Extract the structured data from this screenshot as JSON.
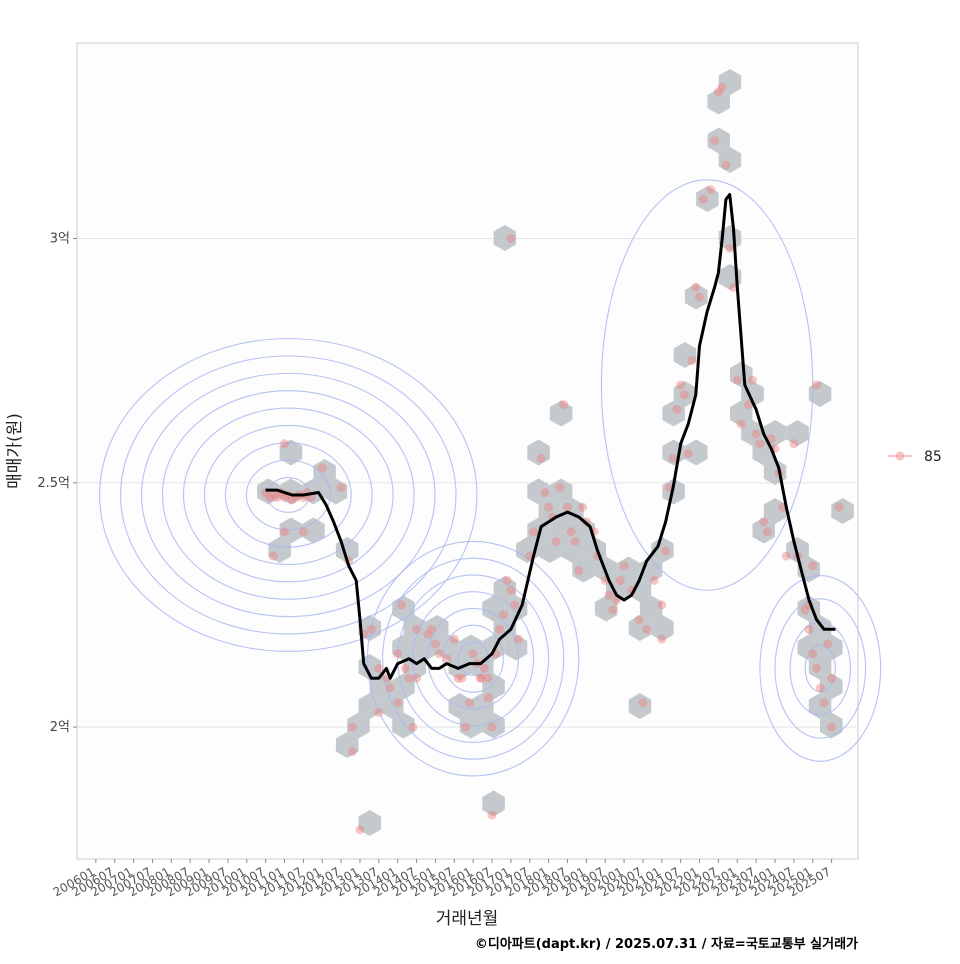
{
  "chart_data": {
    "type": "scatter",
    "xlabel": "거래년월",
    "ylabel": "매매가(원)",
    "caption": "©디아파트(dapt.kr) / 2025.07.31 / 자료=국토교통부 실거래가",
    "y_ticks": [
      {
        "value": 20000,
        "label": "2억"
      },
      {
        "value": 25000,
        "label": "2.5억"
      },
      {
        "value": 30000,
        "label": "3억"
      }
    ],
    "ylim": [
      17300,
      34000
    ],
    "xlim": [
      2005.5,
      2026.2
    ],
    "x_tick_labels": [
      "200601",
      "200607",
      "200701",
      "200707",
      "200801",
      "200807",
      "200901",
      "200907",
      "201001",
      "201007",
      "201101",
      "201107",
      "201201",
      "201207",
      "201301",
      "201307",
      "201401",
      "201407",
      "201501",
      "201507",
      "201601",
      "201607",
      "201701",
      "201707",
      "201801",
      "201807",
      "201901",
      "201907",
      "202001",
      "202007",
      "202101",
      "202107",
      "202201",
      "202207",
      "202301",
      "202307",
      "202401",
      "202407",
      "202501",
      "202507"
    ],
    "legend": [
      {
        "label": "85",
        "color": "#f4a0a0"
      }
    ],
    "grid": true,
    "colors": {
      "points": "#f08080",
      "hex": "#bcc3c8",
      "contour": "#aab8f0",
      "trend": "#000000",
      "panel_border": "#cccccc"
    },
    "series": [
      {
        "name": "85",
        "points": [
          [
            2010.5,
            24800
          ],
          [
            2010.6,
            24700
          ],
          [
            2010.7,
            24750
          ],
          [
            2010.8,
            24700
          ],
          [
            2010.9,
            24800
          ],
          [
            2011.0,
            24700
          ],
          [
            2011.1,
            24750
          ],
          [
            2011.2,
            24650
          ],
          [
            2011.3,
            24700
          ],
          [
            2011.4,
            24750
          ],
          [
            2011.5,
            24700
          ],
          [
            2011.6,
            24800
          ],
          [
            2011.7,
            24700
          ],
          [
            2011.0,
            25800
          ],
          [
            2011.0,
            24000
          ],
          [
            2011.5,
            24000
          ],
          [
            2010.7,
            23500
          ],
          [
            2012.0,
            25300
          ],
          [
            2012.5,
            24900
          ],
          [
            2012.7,
            23400
          ],
          [
            2013.1,
            21900
          ],
          [
            2013.3,
            22000
          ],
          [
            2013.5,
            20300
          ],
          [
            2012.8,
            20000
          ],
          [
            2012.8,
            19500
          ],
          [
            2013.0,
            17900
          ],
          [
            2013.5,
            21200
          ],
          [
            2013.7,
            21000
          ],
          [
            2013.8,
            20800
          ],
          [
            2014.0,
            21500
          ],
          [
            2014.2,
            21200
          ],
          [
            2014.3,
            21000
          ],
          [
            2014.5,
            21000
          ],
          [
            2014.5,
            22000
          ],
          [
            2014.1,
            22500
          ],
          [
            2014.0,
            20500
          ],
          [
            2014.4,
            20000
          ],
          [
            2014.8,
            21900
          ],
          [
            2014.9,
            22000
          ],
          [
            2015.0,
            21700
          ],
          [
            2015.1,
            21500
          ],
          [
            2015.3,
            21400
          ],
          [
            2015.5,
            21800
          ],
          [
            2015.6,
            21000
          ],
          [
            2015.7,
            21000
          ],
          [
            2015.8,
            20000
          ],
          [
            2015.9,
            20500
          ],
          [
            2016.0,
            21500
          ],
          [
            2016.1,
            21300
          ],
          [
            2016.2,
            21000
          ],
          [
            2016.3,
            21200
          ],
          [
            2016.4,
            21000
          ],
          [
            2016.5,
            20000
          ],
          [
            2016.6,
            21500
          ],
          [
            2016.7,
            22000
          ],
          [
            2016.8,
            22300
          ],
          [
            2016.9,
            23000
          ],
          [
            2017.0,
            22800
          ],
          [
            2017.1,
            22500
          ],
          [
            2017.2,
            21800
          ],
          [
            2016.5,
            18200
          ],
          [
            2016.2,
            21000
          ],
          [
            2016.4,
            20600
          ],
          [
            2017.0,
            30000
          ],
          [
            2017.5,
            23500
          ],
          [
            2017.6,
            24000
          ],
          [
            2017.8,
            25500
          ],
          [
            2017.9,
            24800
          ],
          [
            2018.0,
            24500
          ],
          [
            2018.1,
            24300
          ],
          [
            2018.2,
            23800
          ],
          [
            2018.3,
            24900
          ],
          [
            2018.4,
            26600
          ],
          [
            2018.5,
            24500
          ],
          [
            2018.6,
            24000
          ],
          [
            2018.7,
            23800
          ],
          [
            2018.8,
            23200
          ],
          [
            2018.9,
            24500
          ],
          [
            2019.0,
            24200
          ],
          [
            2019.2,
            24000
          ],
          [
            2019.3,
            23500
          ],
          [
            2019.5,
            23000
          ],
          [
            2019.6,
            22700
          ],
          [
            2019.7,
            22400
          ],
          [
            2019.8,
            22600
          ],
          [
            2019.9,
            23000
          ],
          [
            2020.0,
            23300
          ],
          [
            2020.2,
            22800
          ],
          [
            2020.4,
            22200
          ],
          [
            2020.6,
            22000
          ],
          [
            2020.8,
            23000
          ],
          [
            2021.0,
            22500
          ],
          [
            2021.0,
            21800
          ],
          [
            2020.5,
            20500
          ],
          [
            2021.1,
            23600
          ],
          [
            2021.2,
            24900
          ],
          [
            2021.3,
            25500
          ],
          [
            2021.4,
            26500
          ],
          [
            2021.5,
            27000
          ],
          [
            2021.6,
            26800
          ],
          [
            2021.7,
            25600
          ],
          [
            2021.8,
            27500
          ],
          [
            2021.9,
            29000
          ],
          [
            2022.0,
            28800
          ],
          [
            2022.1,
            30800
          ],
          [
            2022.3,
            31000
          ],
          [
            2022.4,
            32000
          ],
          [
            2022.5,
            33000
          ],
          [
            2022.6,
            33100
          ],
          [
            2022.7,
            31500
          ],
          [
            2022.8,
            29800
          ],
          [
            2022.9,
            29000
          ],
          [
            2023.0,
            27100
          ],
          [
            2023.1,
            26200
          ],
          [
            2023.3,
            26600
          ],
          [
            2023.4,
            27100
          ],
          [
            2023.5,
            26000
          ],
          [
            2023.6,
            25800
          ],
          [
            2023.7,
            24200
          ],
          [
            2023.8,
            24000
          ],
          [
            2023.9,
            25900
          ],
          [
            2024.0,
            25700
          ],
          [
            2024.1,
            25200
          ],
          [
            2024.2,
            24500
          ],
          [
            2024.3,
            23500
          ],
          [
            2024.5,
            25800
          ],
          [
            2024.6,
            23500
          ],
          [
            2024.8,
            22400
          ],
          [
            2024.9,
            22000
          ],
          [
            2025.0,
            21500
          ],
          [
            2025.1,
            21200
          ],
          [
            2025.2,
            20800
          ],
          [
            2025.3,
            20500
          ],
          [
            2025.4,
            21700
          ],
          [
            2025.5,
            21000
          ],
          [
            2025.5,
            20000
          ],
          [
            2025.7,
            24500
          ],
          [
            2025.1,
            27000
          ],
          [
            2025.0,
            23300
          ],
          [
            2024.9,
            22500
          ]
        ],
        "trend": [
          [
            2010.5,
            24850
          ],
          [
            2010.8,
            24850
          ],
          [
            2011.2,
            24750
          ],
          [
            2011.5,
            24750
          ],
          [
            2011.9,
            24800
          ],
          [
            2012.1,
            24550
          ],
          [
            2012.3,
            24200
          ],
          [
            2012.5,
            23800
          ],
          [
            2012.7,
            23300
          ],
          [
            2012.9,
            23000
          ],
          [
            2013.0,
            22200
          ],
          [
            2013.1,
            21300
          ],
          [
            2013.3,
            21000
          ],
          [
            2013.5,
            21000
          ],
          [
            2013.7,
            21200
          ],
          [
            2013.8,
            21000
          ],
          [
            2014.0,
            21300
          ],
          [
            2014.3,
            21400
          ],
          [
            2014.5,
            21300
          ],
          [
            2014.7,
            21400
          ],
          [
            2014.9,
            21200
          ],
          [
            2015.1,
            21200
          ],
          [
            2015.3,
            21300
          ],
          [
            2015.6,
            21200
          ],
          [
            2015.9,
            21300
          ],
          [
            2016.2,
            21300
          ],
          [
            2016.5,
            21500
          ],
          [
            2016.7,
            21800
          ],
          [
            2017.0,
            22000
          ],
          [
            2017.3,
            22500
          ],
          [
            2017.6,
            23500
          ],
          [
            2017.8,
            24100
          ],
          [
            2018.0,
            24200
          ],
          [
            2018.2,
            24300
          ],
          [
            2018.5,
            24400
          ],
          [
            2018.8,
            24300
          ],
          [
            2019.1,
            24100
          ],
          [
            2019.3,
            23600
          ],
          [
            2019.6,
            23000
          ],
          [
            2019.8,
            22700
          ],
          [
            2020.0,
            22600
          ],
          [
            2020.2,
            22700
          ],
          [
            2020.4,
            23000
          ],
          [
            2020.6,
            23400
          ],
          [
            2020.9,
            23700
          ],
          [
            2021.1,
            24200
          ],
          [
            2021.3,
            24900
          ],
          [
            2021.5,
            25800
          ],
          [
            2021.7,
            26200
          ],
          [
            2021.9,
            26800
          ],
          [
            2022.0,
            27800
          ],
          [
            2022.2,
            28500
          ],
          [
            2022.4,
            29000
          ],
          [
            2022.5,
            29300
          ],
          [
            2022.6,
            30000
          ],
          [
            2022.7,
            30800
          ],
          [
            2022.8,
            30900
          ],
          [
            2022.9,
            30200
          ],
          [
            2023.0,
            29000
          ],
          [
            2023.2,
            27000
          ],
          [
            2023.5,
            26500
          ],
          [
            2023.7,
            26000
          ],
          [
            2023.9,
            25700
          ],
          [
            2024.1,
            25300
          ],
          [
            2024.3,
            24500
          ],
          [
            2024.5,
            23800
          ],
          [
            2024.7,
            23200
          ],
          [
            2024.9,
            22600
          ],
          [
            2025.1,
            22200
          ],
          [
            2025.3,
            22000
          ],
          [
            2025.6,
            22000
          ]
        ]
      }
    ],
    "density_peaks": [
      {
        "x": 2011.1,
        "y": 24750,
        "rx": 5.0,
        "ry": 3200,
        "levels": 9
      },
      {
        "x": 2016.0,
        "y": 21400,
        "rx": 2.8,
        "ry": 2400,
        "levels": 7
      },
      {
        "x": 2025.2,
        "y": 21200,
        "rx": 1.6,
        "ry": 1900,
        "levels": 4
      },
      {
        "x": 2022.2,
        "y": 27000,
        "rx": 2.8,
        "ry": 4200,
        "levels": 1
      }
    ]
  }
}
